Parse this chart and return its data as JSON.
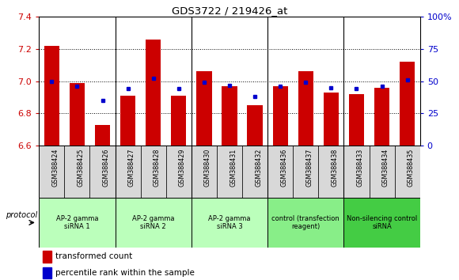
{
  "title": "GDS3722 / 219426_at",
  "samples": [
    "GSM388424",
    "GSM388425",
    "GSM388426",
    "GSM388427",
    "GSM388428",
    "GSM388429",
    "GSM388430",
    "GSM388431",
    "GSM388432",
    "GSM388436",
    "GSM388437",
    "GSM388438",
    "GSM388433",
    "GSM388434",
    "GSM388435"
  ],
  "transformed_count": [
    7.22,
    6.99,
    6.73,
    6.91,
    7.26,
    6.91,
    7.06,
    6.97,
    6.85,
    6.97,
    7.06,
    6.93,
    6.92,
    6.96,
    7.12
  ],
  "percentile_rank": [
    50,
    46,
    35,
    44,
    52,
    44,
    49,
    47,
    38,
    46,
    49,
    45,
    44,
    46,
    51
  ],
  "ylim_left": [
    6.6,
    7.4
  ],
  "ylim_right": [
    0,
    100
  ],
  "yticks_left": [
    6.6,
    6.8,
    7.0,
    7.2,
    7.4
  ],
  "yticks_right": [
    0,
    25,
    50,
    75,
    100
  ],
  "bar_color": "#cc0000",
  "dot_color": "#0000cc",
  "groups": [
    {
      "label": "AP-2 gamma\nsiRNA 1",
      "indices": [
        0,
        1,
        2
      ],
      "color": "#bbffbb"
    },
    {
      "label": "AP-2 gamma\nsiRNA 2",
      "indices": [
        3,
        4,
        5
      ],
      "color": "#bbffbb"
    },
    {
      "label": "AP-2 gamma\nsiRNA 3",
      "indices": [
        6,
        7,
        8
      ],
      "color": "#bbffbb"
    },
    {
      "label": "control (transfection\nreagent)",
      "indices": [
        9,
        10,
        11
      ],
      "color": "#88ee88"
    },
    {
      "label": "Non-silencing control\nsiRNA",
      "indices": [
        12,
        13,
        14
      ],
      "color": "#44cc44"
    }
  ],
  "protocol_label": "protocol",
  "legend_bar": "transformed count",
  "legend_dot": "percentile rank within the sample",
  "tick_color_left": "#cc0000",
  "tick_color_right": "#0000cc",
  "group_boundaries": [
    2.5,
    5.5,
    8.5,
    11.5
  ]
}
